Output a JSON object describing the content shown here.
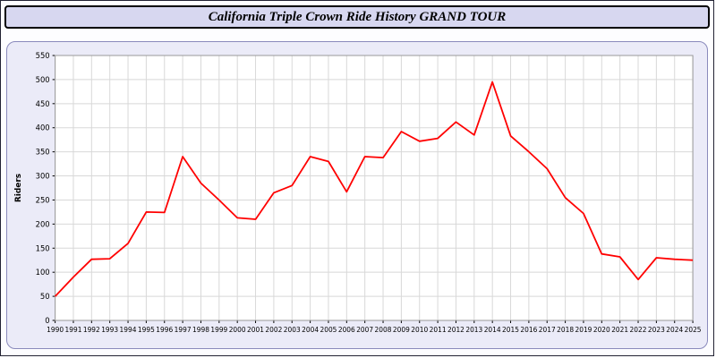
{
  "header": {
    "title": "California Triple Crown Ride History GRAND TOUR"
  },
  "chart_data": {
    "type": "line",
    "title": "California Triple Crown Ride History GRAND TOUR",
    "x": [
      1990,
      1991,
      1992,
      1993,
      1994,
      1995,
      1996,
      1997,
      1998,
      1999,
      2000,
      2001,
      2002,
      2003,
      2004,
      2005,
      2006,
      2007,
      2008,
      2009,
      2010,
      2011,
      2012,
      2013,
      2014,
      2015,
      2016,
      2017,
      2018,
      2019,
      2020,
      2021,
      2022,
      2023,
      2024,
      2025
    ],
    "series": [
      {
        "name": "Riders",
        "color": "#ff0000",
        "values": [
          50,
          90,
          127,
          128,
          160,
          225,
          224,
          340,
          285,
          250,
          213,
          210,
          265,
          280,
          340,
          330,
          267,
          340,
          338,
          392,
          372,
          378,
          412,
          385,
          495,
          383,
          350,
          315,
          255,
          222,
          138,
          132,
          85,
          130,
          127,
          125
        ]
      }
    ],
    "xlabel": "",
    "ylabel": "Riders",
    "ylim": [
      0,
      550
    ],
    "ytick_step": 50,
    "grid": true,
    "legend": "none",
    "plot_bg": "#ffffff",
    "grid_color": "#d8d8d8",
    "panel_bg": "#ebebf8"
  }
}
